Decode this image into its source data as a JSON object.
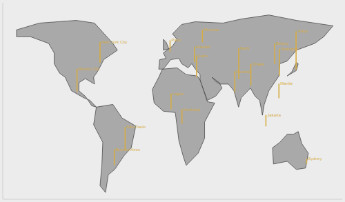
{
  "chart_data": {
    "type": "map",
    "xlim": [
      -180,
      190
    ],
    "ylim": [
      -60,
      85
    ],
    "tick_labels": false,
    "color": "#d6ad45",
    "cities": [
      {
        "name": "New York City",
        "lon": -74,
        "lat": 40.7,
        "value": 20
      },
      {
        "name": "Mexico City",
        "lon": -99.1,
        "lat": 19.4,
        "value": 22
      },
      {
        "name": "São Paulo",
        "lon": -46.6,
        "lat": -23.5,
        "value": 22
      },
      {
        "name": "Buenos Aires",
        "lon": -58.4,
        "lat": -34.6,
        "value": 15
      },
      {
        "name": "Lagos",
        "lon": 3.4,
        "lat": 6.5,
        "value": 15
      },
      {
        "name": "Kinshasa",
        "lon": 15.3,
        "lat": -4.3,
        "value": 14
      },
      {
        "name": "Paris",
        "lon": 2.35,
        "lat": 48.9,
        "value": 11
      },
      {
        "name": "Moscow",
        "lon": 37.6,
        "lat": 55.8,
        "value": 12
      },
      {
        "name": "Istanbul",
        "lon": 29,
        "lat": 41,
        "value": 15
      },
      {
        "name": "Cairo",
        "lon": 31.2,
        "lat": 30,
        "value": 21
      },
      {
        "name": "Delhi",
        "lon": 77.2,
        "lat": 28.6,
        "value": 30
      },
      {
        "name": "Mumbai",
        "lon": 72.9,
        "lat": 19.1,
        "value": 20
      },
      {
        "name": "Dhaka",
        "lon": 90.4,
        "lat": 23.8,
        "value": 21
      },
      {
        "name": "Beijing",
        "lon": 116.4,
        "lat": 39.9,
        "value": 20
      },
      {
        "name": "Shanghai",
        "lon": 121.5,
        "lat": 31.2,
        "value": 26
      },
      {
        "name": "Tokyo",
        "lon": 139.7,
        "lat": 35.7,
        "value": 37
      },
      {
        "name": "Manila",
        "lon": 121,
        "lat": 14.6,
        "value": 14
      },
      {
        "name": "Jakarta",
        "lon": 106.8,
        "lat": -6.2,
        "value": 11
      },
      {
        "name": "Sydney",
        "lon": 151.2,
        "lat": -33.9,
        "value": 5
      }
    ],
    "land": [
      [
        [
          -165,
          65
        ],
        [
          -140,
          70
        ],
        [
          -100,
          72
        ],
        [
          -80,
          70
        ],
        [
          -60,
          55
        ],
        [
          -55,
          50
        ],
        [
          -70,
          43
        ],
        [
          -76,
          35
        ],
        [
          -81,
          30
        ],
        [
          -80,
          25
        ],
        [
          -90,
          29
        ],
        [
          -97,
          26
        ],
        [
          -97,
          20
        ],
        [
          -90,
          16
        ],
        [
          -83,
          9
        ],
        [
          -78,
          8
        ],
        [
          -85,
          13
        ],
        [
          -92,
          15
        ],
        [
          -105,
          20
        ],
        [
          -112,
          30
        ],
        [
          -118,
          33
        ],
        [
          -124,
          40
        ],
        [
          -124,
          48
        ],
        [
          -130,
          55
        ],
        [
          -150,
          60
        ],
        [
          -165,
          60
        ],
        [
          -165,
          65
        ]
      ],
      [
        [
          -78,
          8
        ],
        [
          -60,
          10
        ],
        [
          -50,
          0
        ],
        [
          -35,
          -6
        ],
        [
          -40,
          -22
        ],
        [
          -48,
          -28
        ],
        [
          -58,
          -38
        ],
        [
          -65,
          -42
        ],
        [
          -68,
          -55
        ],
        [
          -74,
          -50
        ],
        [
          -72,
          -35
        ],
        [
          -71,
          -18
        ],
        [
          -81,
          -5
        ],
        [
          -78,
          8
        ]
      ],
      [
        [
          -10,
          36
        ],
        [
          -9,
          43
        ],
        [
          -2,
          44
        ],
        [
          -5,
          48
        ],
        [
          5,
          53
        ],
        [
          10,
          58
        ],
        [
          5,
          62
        ],
        [
          15,
          69
        ],
        [
          30,
          71
        ],
        [
          60,
          70
        ],
        [
          80,
          73
        ],
        [
          110,
          76
        ],
        [
          140,
          72
        ],
        [
          180,
          68
        ],
        [
          170,
          60
        ],
        [
          160,
          55
        ],
        [
          140,
          50
        ],
        [
          130,
          42
        ],
        [
          122,
          40
        ],
        [
          121,
          31
        ],
        [
          110,
          20
        ],
        [
          105,
          10
        ],
        [
          103,
          2
        ],
        [
          100,
          13
        ],
        [
          95,
          16
        ],
        [
          90,
          22
        ],
        [
          80,
          15
        ],
        [
          77,
          8
        ],
        [
          72,
          20
        ],
        [
          66,
          25
        ],
        [
          57,
          25
        ],
        [
          52,
          27
        ],
        [
          48,
          30
        ],
        [
          56,
          26
        ],
        [
          59,
          22
        ],
        [
          52,
          16
        ],
        [
          43,
          13
        ],
        [
          35,
          28
        ],
        [
          35,
          32
        ],
        [
          30,
          36
        ],
        [
          26,
          40
        ],
        [
          22,
          37
        ],
        [
          15,
          40
        ],
        [
          12,
          44
        ],
        [
          3,
          43
        ],
        [
          -5,
          36
        ],
        [
          -10,
          36
        ]
      ],
      [
        [
          -17,
          21
        ],
        [
          -10,
          30
        ],
        [
          -6,
          36
        ],
        [
          10,
          37
        ],
        [
          20,
          32
        ],
        [
          32,
          31
        ],
        [
          35,
          28
        ],
        [
          43,
          12
        ],
        [
          51,
          11
        ],
        [
          40,
          -3
        ],
        [
          40,
          -15
        ],
        [
          33,
          -26
        ],
        [
          20,
          -35
        ],
        [
          17,
          -29
        ],
        [
          12,
          -17
        ],
        [
          9,
          -1
        ],
        [
          8,
          4
        ],
        [
          -5,
          5
        ],
        [
          -15,
          11
        ],
        [
          -17,
          21
        ]
      ],
      [
        [
          114,
          -22
        ],
        [
          122,
          -18
        ],
        [
          130,
          -12
        ],
        [
          137,
          -12
        ],
        [
          142,
          -10
        ],
        [
          146,
          -19
        ],
        [
          153,
          -26
        ],
        [
          150,
          -37
        ],
        [
          140,
          -38
        ],
        [
          130,
          -32
        ],
        [
          115,
          -34
        ],
        [
          114,
          -22
        ]
      ],
      [
        [
          -5,
          50
        ],
        [
          1,
          51
        ],
        [
          -2,
          56
        ],
        [
          -5,
          58
        ],
        [
          -5,
          50
        ]
      ],
      [
        [
          130,
          31
        ],
        [
          140,
          35
        ],
        [
          142,
          40
        ],
        [
          140,
          41
        ],
        [
          135,
          34
        ],
        [
          130,
          31
        ]
      ]
    ]
  }
}
